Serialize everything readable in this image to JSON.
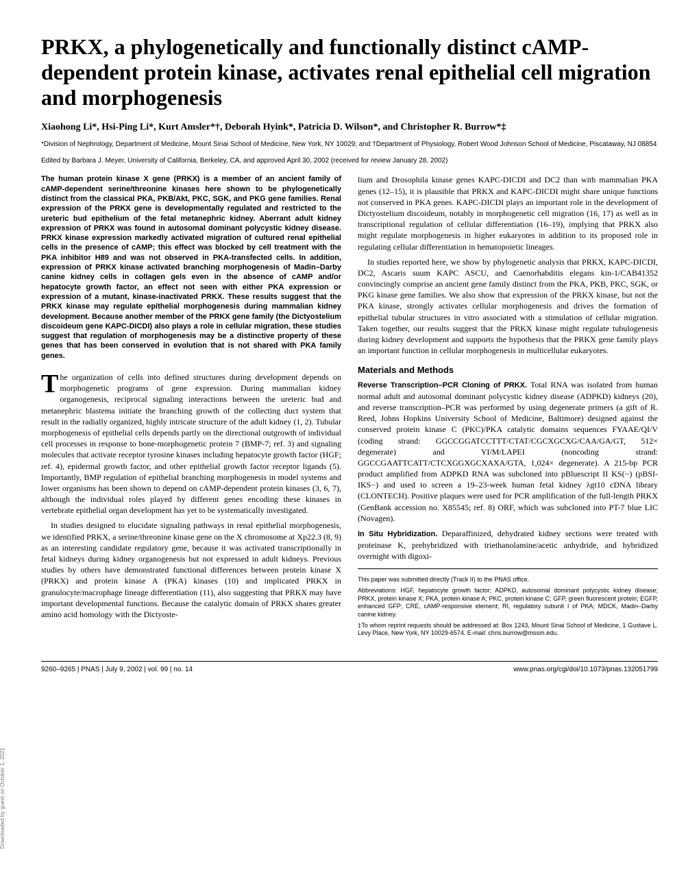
{
  "title": "PRKX, a phylogenetically and functionally distinct cAMP-dependent protein kinase, activates renal epithelial cell migration and morphogenesis",
  "authors": "Xiaohong Li*, Hsi-Ping Li*, Kurt Amsler*†, Deborah Hyink*, Patricia D. Wilson*, and Christopher R. Burrow*‡",
  "affiliations": "*Division of Nephrology, Department of Medicine, Mount Sinai School of Medicine, New York, NY 10029; and †Department of Physiology, Robert Wood Johnson School of Medicine, Piscataway, NJ 08854",
  "edited_by": "Edited by Barbara J. Meyer, University of California, Berkeley, CA, and approved April 30, 2002 (received for review January 28, 2002)",
  "abstract": "The human protein kinase X gene (PRKX) is a member of an ancient family of cAMP-dependent serine/threonine kinases here shown to be phylogenetically distinct from the classical PKA, PKB/Akt, PKC, SGK, and PKG gene families. Renal expression of the PRKX gene is developmentally regulated and restricted to the ureteric bud epithelium of the fetal metanephric kidney. Aberrant adult kidney expression of PRKX was found in autosomal dominant polycystic kidney disease. PRKX kinase expression markedly activated migration of cultured renal epithelial cells in the presence of cAMP; this effect was blocked by cell treatment with the PKA inhibitor H89 and was not observed in PKA-transfected cells. In addition, expression of PRKX kinase activated branching morphogenesis of Madin–Darby canine kidney cells in collagen gels even in the absence of cAMP and/or hepatocyte growth factor, an effect not seen with either PKA expression or expression of a mutant, kinase-inactivated PRKX. These results suggest that the PRKX kinase may regulate epithelial morphogenesis during mammalian kidney development. Because another member of the PRKX gene family (the Dictyostelium discoideum gene KAPC-DICDI) also plays a role in cellular migration, these studies suggest that regulation of morphogenesis may be a distinctive property of these genes that has been conserved in evolution that is not shared with PKA family genes.",
  "left": {
    "p1_dropcap": "T",
    "p1": "he organization of cells into defined structures during development depends on morphogenetic programs of gene expression. During mammalian kidney organogenesis, reciprocal signaling interactions between the ureteric bud and metanephric blastema initiate the branching growth of the collecting duct system that result in the radially organized, highly intricate structure of the adult kidney (1, 2). Tubular morphogenesis of epithelial cells depends partly on the directional outgrowth of individual cell processes in response to bone-morphogenetic protein 7 (BMP-7; ref. 3) and signaling molecules that activate receptor tyrosine kinases including hepatocyte growth factor (HGF; ref. 4), epidermal growth factor, and other epithelial growth factor receptor ligands (5). Importantly, BMP regulation of epithelial branching morphogenesis in model systems and lower organisms has been shown to depend on cAMP-dependent protein kinases (3, 6, 7), although the individual roles played by different genes encoding these kinases in vertebrate epithelial organ development has yet to be systematically investigated.",
    "p2": "In studies designed to elucidate signaling pathways in renal epithelial morphogenesis, we identified PRKX, a serine/threonine kinase gene on the X chromosome at Xp22.3 (8, 9) as an interesting candidate regulatory gene, because it was activated transcriptionally in fetal kidneys during kidney organogenesis but not expressed in adult kidneys. Previous studies by others have demonstrated functional differences between protein kinase X (PRKX) and protein kinase A (PKA) kinases (10) and implicated PRKX in granulocyte/macrophage lineage differentiation (11), also suggesting that PRKX may have important developmental functions. Because the catalytic domain of PRKX shares greater amino acid homology with the Dictyoste-"
  },
  "right": {
    "p1": "lium and Drosophila kinase genes KAPC-DICDI and DC2 than with mammalian PKA genes (12–15), it is plausible that PRKX and KAPC-DICDI might share unique functions not conserved in PKA genes. KAPC-DICDI plays an important role in the development of Dictyostelium discoideum, notably in morphogenetic cell migration (16, 17) as well as in transcriptional regulation of cellular differentiation (16–19), implying that PRKX also might regulate morphogenesis in higher eukaryotes in addition to its proposed role in regulating cellular differentiation in hematopoietic lineages.",
    "p2": "In studies reported here, we show by phylogenetic analysis that PRKX, KAPC-DICDI, DC2, Ascaris suum KAPC ASCU, and Caenorhabditis elegans kin-1/CAB41352 convincingly comprise an ancient gene family distinct from the PKA, PKB, PKC, SGK, or PKG kinase gene families. We also show that expression of the PRKX kinase, but not the PKA kinase, strongly activates cellular morphogenesis and drives the formation of epithelial tubular structures in vitro associated with a stimulation of cellular migration. Taken together, our results suggest that the PRKX kinase might regulate tubulogenesis during kidney development and supports the hypothesis that the PRKX gene family plays an important function in cellular morphogenesis in multicellular eukaryotes.",
    "methods_head": "Materials and Methods",
    "m1_head": "Reverse Transcription–PCR Cloning of PRKX.",
    "m1": " Total RNA was isolated from human normal adult and autosomal dominant polycystic kidney disease (ADPKD) kidneys (20), and reverse transcription–PCR was performed by using degenerate primers (a gift of R. Reed, Johns Hopkins University School of Medicine, Baltimore) designed against the conserved protein kinase C (PKC)/PKA catalytic domains sequences FYAAE/QI/V (coding strand: GGCCGGATCCTTT/CTAT/CGCXGCXG/CAA/GA/GT, 512× degenerate) and YI/M/LAPEI (noncoding strand: GGCCGAATTCATT/CTCXGGXGCXAXA/GTA, 1,024× degenerate). A 215-bp PCR product amplified from ADPKD RNA was subcloned into pBluescript II KS(−) (pBSI-IKS−) and used to screen a 19–23-week human fetal kidney λgt10 cDNA library (CLONTECH). Positive plaques were used for PCR amplification of the full-length PRKX (GenBank accession no. X85545; ref. 8) ORF, which was subcloned into PT-7 blue LIC (Novagen).",
    "m2_head": "In Situ Hybridization.",
    "m2": " Deparaffinized, dehydrated kidney sections were treated with proteinase K, prehybridized with triethanolamine/acetic anhydride, and hybridized overnight with digoxi-"
  },
  "footnotes": {
    "f1": "This paper was submitted directly (Track II) to the PNAS office.",
    "f2": "Abbreviations: HGF, hepatocyte growth factor; ADPKD, autosomal dominant polycystic kidney disease; PRKX, protein kinase X; PKA, protein kinase A; PKC, protein kinase C; GFP, green fluorescent protein; EGFP, enhanced GFP; CRE, cAMP-responsive element; RI, regulatory subunit I of PKA; MDCK, Madin–Darby canine kidney.",
    "f3": "‡To whom reprint requests should be addressed at: Box 1243, Mount Sinai School of Medicine, 1 Gustave L. Levy Place, New York, NY 10029-6574. E-mail: chris.burrow@mssm.edu."
  },
  "footer": {
    "left": "9260–9265  |  PNAS  |  July 9, 2002  |  vol. 99  |  no. 14",
    "right": "www.pnas.org/cgi/doi/10.1073/pnas.132051799"
  },
  "sidetext": "Downloaded by guest on October 1, 2021"
}
